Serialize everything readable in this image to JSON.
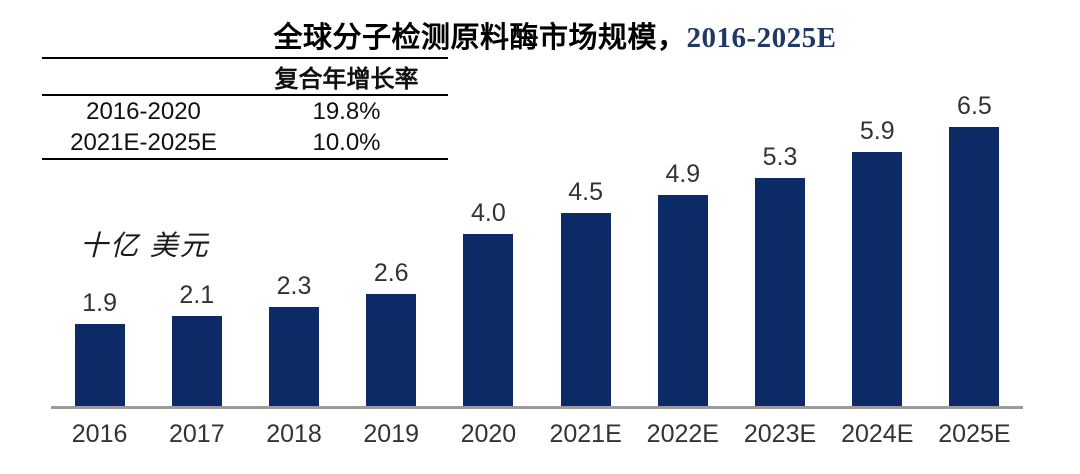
{
  "title": {
    "text_cn": "全球分子检测原料酶市场规模，",
    "text_range": "2016-2025E"
  },
  "cagr_table": {
    "header": "复合年增长率",
    "rows": [
      {
        "period": "2016-2020",
        "value": "19.8%"
      },
      {
        "period": "2021E-2025E",
        "value": "10.0%"
      }
    ]
  },
  "unit_label": "十亿 美元",
  "colors": {
    "bar": "#0c2a66",
    "title_range": "#1f3864",
    "axis_line": "#9b9b9b"
  },
  "chart_data": {
    "type": "bar",
    "title": "全球分子检测原料酶市场规模，2016-2025E",
    "categories": [
      "2016",
      "2017",
      "2018",
      "2019",
      "2020",
      "2021E",
      "2022E",
      "2023E",
      "2024E",
      "2025E"
    ],
    "values": [
      1.9,
      2.1,
      2.3,
      2.6,
      4.0,
      4.5,
      4.9,
      5.3,
      5.9,
      6.5
    ],
    "data_labels": [
      "1.9",
      "2.1",
      "2.3",
      "2.6",
      "4.0",
      "4.5",
      "4.9",
      "5.3",
      "5.9",
      "6.5"
    ],
    "xlabel": "",
    "ylabel": "十亿 美元",
    "ylim": [
      0,
      7
    ],
    "grid": false,
    "legend": false,
    "annotations": {
      "cagr_2016_2020": "19.8%",
      "cagr_2021E_2025E": "10.0%"
    }
  }
}
